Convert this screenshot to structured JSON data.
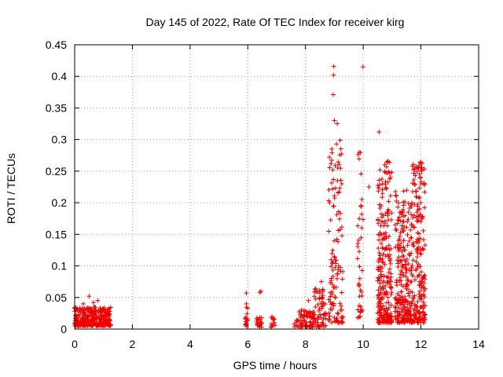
{
  "chart_data": {
    "type": "scatter",
    "title": "Day 145 of 2022, Rate Of TEC Index for receiver kirg",
    "xlabel": "GPS time / hours",
    "ylabel": "ROTI / TECUs",
    "xlim": [
      0,
      14
    ],
    "ylim": [
      0,
      0.45
    ],
    "xticks": [
      0,
      2,
      4,
      6,
      8,
      10,
      12,
      14
    ],
    "yticks": [
      0,
      0.05,
      0.1,
      0.15,
      0.2,
      0.25,
      0.3,
      0.35,
      0.4,
      0.45
    ],
    "xtick_labels": [
      "0",
      "2",
      "4",
      "6",
      "8",
      "10",
      "12",
      "14"
    ],
    "ytick_labels": [
      "0",
      "0.05",
      "0.1",
      "0.15",
      "0.2",
      "0.25",
      "0.3",
      "0.35",
      "0.4",
      "0.45"
    ],
    "grid": true,
    "marker": "+",
    "marker_color": "#ee0000",
    "series": [
      {
        "name": "ROTI",
        "clusters": [
          {
            "x_range": [
              0.0,
              1.25
            ],
            "y_range": [
              0.005,
              0.035
            ],
            "count": 300,
            "outliers": [
              [
                0.5,
                0.052
              ],
              [
                0.3,
                0.04
              ],
              [
                0.8,
                0.045
              ],
              [
                0.65,
                0.042
              ]
            ]
          },
          {
            "x_range": [
              5.9,
              6.0
            ],
            "y_range": [
              0.003,
              0.035
            ],
            "count": 15,
            "outliers": [
              [
                5.95,
                0.057
              ],
              [
                5.95,
                0.04
              ]
            ]
          },
          {
            "x_range": [
              6.3,
              6.5
            ],
            "y_range": [
              0.003,
              0.025
            ],
            "count": 20,
            "outliers": [
              [
                6.45,
                0.06
              ],
              [
                6.42,
                0.058
              ]
            ]
          },
          {
            "x_range": [
              6.8,
              6.95
            ],
            "y_range": [
              0.003,
              0.02
            ],
            "count": 12,
            "outliers": []
          },
          {
            "x_range": [
              7.6,
              8.3
            ],
            "y_range": [
              0.003,
              0.03
            ],
            "count": 80,
            "outliers": [
              [
                8.1,
                0.045
              ]
            ]
          },
          {
            "x_range": [
              8.3,
              8.7
            ],
            "y_range": [
              0.003,
              0.065
            ],
            "count": 60,
            "outliers": [
              [
                8.55,
                0.075
              ],
              [
                8.6,
                0.063
              ]
            ]
          },
          {
            "x_range": [
              8.8,
              9.3
            ],
            "y_range": [
              0.01,
              0.3
            ],
            "count": 120,
            "outliers": [
              [
                8.98,
                0.416
              ],
              [
                8.97,
                0.402
              ],
              [
                8.96,
                0.371
              ],
              [
                9.1,
                0.325
              ],
              [
                9.0,
                0.33
              ]
            ]
          },
          {
            "x_range": [
              9.8,
              10.0
            ],
            "y_range": [
              0.015,
              0.28
            ],
            "count": 40,
            "outliers": [
              [
                9.99,
                0.415
              ],
              [
                10.2,
                0.225
              ]
            ]
          },
          {
            "x_range": [
              10.5,
              11.0
            ],
            "y_range": [
              0.01,
              0.27
            ],
            "count": 250,
            "outliers": [
              [
                10.55,
                0.312
              ],
              [
                10.95,
                0.24
              ]
            ]
          },
          {
            "x_range": [
              11.1,
              11.7
            ],
            "y_range": [
              0.01,
              0.22
            ],
            "count": 250,
            "outliers": []
          },
          {
            "x_range": [
              11.7,
              12.15
            ],
            "y_range": [
              0.01,
              0.265
            ],
            "count": 200,
            "outliers": [
              [
                11.95,
                0.26
              ],
              [
                12.0,
                0.255
              ]
            ]
          }
        ]
      }
    ]
  }
}
